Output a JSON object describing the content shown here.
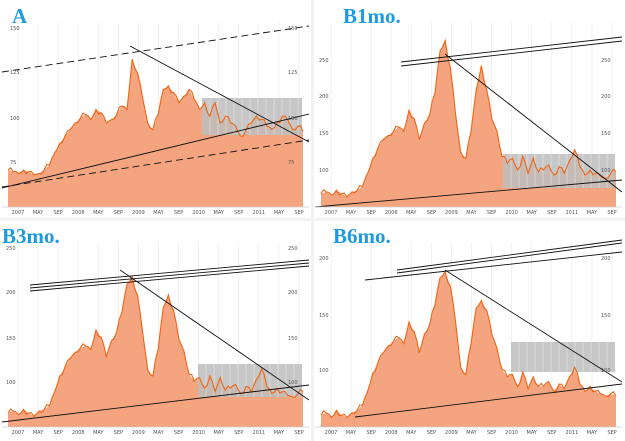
{
  "colors": {
    "area_fill": "#f4a57f",
    "price_line": "#f06414",
    "title": "#1e9be0",
    "range_box": "#bdbdbd",
    "trend_line": "#111111",
    "grid": "#e8e8e8"
  },
  "chart_data": [
    {
      "type": "area",
      "title": "A",
      "xticks": [
        "2007",
        "MAY",
        "SEP",
        "2008",
        "MAY",
        "SEP",
        "2009",
        "MAY",
        "SEP",
        "2010",
        "MAY",
        "SEP",
        "2011",
        "MAY",
        "SEP"
      ],
      "yticks_left": [
        "150",
        "125",
        "100",
        "75"
      ],
      "yticks_right": [
        "150",
        "125",
        "100",
        "75"
      ],
      "ylim": [
        50,
        160
      ],
      "x": [
        0,
        1,
        2,
        3,
        4,
        5,
        6,
        7,
        8,
        9,
        10,
        11,
        12,
        13,
        14,
        15,
        16,
        17,
        18,
        19,
        20,
        21,
        22,
        23,
        24,
        25,
        26,
        27,
        28,
        29,
        30,
        31,
        32,
        33,
        34,
        35,
        36,
        37,
        38,
        39,
        40,
        41,
        42,
        43,
        44,
        45,
        46,
        47,
        48,
        49,
        50,
        51,
        52,
        53,
        54,
        55,
        56,
        57
      ],
      "values": [
        72,
        71,
        70,
        72,
        71,
        69,
        70,
        72,
        75,
        82,
        88,
        92,
        96,
        100,
        103,
        105,
        102,
        108,
        106,
        100,
        102,
        105,
        110,
        108,
        138,
        130,
        115,
        100,
        96,
        105,
        120,
        122,
        118,
        112,
        116,
        120,
        114,
        108,
        112,
        104,
        112,
        100,
        104,
        100,
        98,
        92,
        96,
        100,
        104,
        102,
        98,
        96,
        100,
        104,
        102,
        96,
        98,
        95
      ],
      "annotations": []
    },
    {
      "type": "area",
      "title": "B1mo.",
      "xticks": [
        "2007",
        "MAY",
        "SEP",
        "2008",
        "MAY",
        "SEP",
        "2009",
        "MAY",
        "SEP",
        "2010",
        "MAY",
        "SEP",
        "2011",
        "MAY",
        "SEP"
      ],
      "yticks_left": [
        "250",
        "200",
        "150",
        "100"
      ],
      "yticks_right": [
        "250",
        "200",
        "150",
        "100"
      ],
      "ylim": [
        60,
        280
      ],
      "x": [
        0,
        1,
        2,
        3,
        4,
        5,
        6,
        7,
        8,
        9,
        10,
        11,
        12,
        13,
        14,
        15,
        16,
        17,
        18,
        19,
        20,
        21,
        22,
        23,
        24,
        25,
        26,
        27,
        28,
        29,
        30,
        31,
        32,
        33,
        34,
        35,
        36,
        37,
        38,
        39,
        40,
        41,
        42,
        43,
        44,
        45,
        46,
        47,
        48,
        49,
        50,
        51,
        52,
        53,
        54,
        55,
        56,
        57
      ],
      "values": [
        76,
        78,
        74,
        80,
        76,
        72,
        78,
        80,
        84,
        100,
        118,
        130,
        140,
        145,
        150,
        155,
        150,
        175,
        165,
        140,
        160,
        170,
        195,
        245,
        258,
        225,
        170,
        125,
        118,
        150,
        200,
        228,
        200,
        165,
        150,
        120,
        112,
        118,
        104,
        120,
        100,
        118,
        102,
        104,
        110,
        98,
        108,
        100,
        115,
        128,
        108,
        98,
        104,
        100,
        96,
        94,
        100,
        102
      ],
      "annotations": []
    },
    {
      "type": "area",
      "title": "B3mo.",
      "xticks": [
        "2007",
        "MAY",
        "SEP",
        "2008",
        "MAY",
        "SEP",
        "2009",
        "MAY",
        "SEP",
        "2010",
        "MAY",
        "SEP",
        "2011",
        "MAY",
        "SEP"
      ],
      "yticks_left": [
        "250",
        "200",
        "150",
        "100"
      ],
      "yticks_right": [
        "250",
        "200",
        "150",
        "100"
      ],
      "ylim": [
        60,
        270
      ],
      "x": [
        0,
        1,
        2,
        3,
        4,
        5,
        6,
        7,
        8,
        9,
        10,
        11,
        12,
        13,
        14,
        15,
        16,
        17,
        18,
        19,
        20,
        21,
        22,
        23,
        24,
        25,
        26,
        27,
        28,
        29,
        30,
        31,
        32,
        33,
        34,
        35,
        36,
        37,
        38,
        39,
        40,
        41,
        42,
        43,
        44,
        45,
        46,
        47,
        48,
        49,
        50,
        51,
        52,
        53,
        54,
        55,
        56,
        57
      ],
      "values": [
        76,
        78,
        74,
        80,
        76,
        72,
        78,
        80,
        84,
        100,
        118,
        128,
        138,
        145,
        150,
        152,
        148,
        170,
        162,
        140,
        158,
        168,
        190,
        222,
        230,
        210,
        168,
        125,
        118,
        148,
        196,
        210,
        192,
        160,
        146,
        120,
        112,
        116,
        104,
        118,
        100,
        116,
        102,
        104,
        108,
        98,
        106,
        100,
        114,
        126,
        106,
        98,
        104,
        100,
        96,
        94,
        98,
        100
      ],
      "annotations": []
    },
    {
      "type": "area",
      "title": "B6mo.",
      "xticks": [
        "2007",
        "MAY",
        "SEP",
        "2008",
        "MAY",
        "SEP",
        "2009",
        "MAY",
        "SEP",
        "2010",
        "MAY",
        "SEP",
        "2011",
        "MAY",
        "SEP"
      ],
      "yticks_left": [
        "200",
        "150",
        "100"
      ],
      "yticks_right": [
        "200",
        "150",
        "100"
      ],
      "ylim": [
        70,
        225
      ],
      "x": [
        0,
        1,
        2,
        3,
        4,
        5,
        6,
        7,
        8,
        9,
        10,
        11,
        12,
        13,
        14,
        15,
        16,
        17,
        18,
        19,
        20,
        21,
        22,
        23,
        24,
        25,
        26,
        27,
        28,
        29,
        30,
        31,
        32,
        33,
        34,
        35,
        36,
        37,
        38,
        39,
        40,
        41,
        42,
        43,
        44,
        45,
        46,
        47,
        48,
        49,
        50,
        51,
        52,
        53,
        54,
        55,
        56,
        57
      ],
      "values": [
        80,
        82,
        78,
        84,
        80,
        78,
        82,
        84,
        88,
        100,
        115,
        124,
        132,
        138,
        142,
        145,
        140,
        158,
        150,
        132,
        148,
        156,
        172,
        195,
        200,
        188,
        158,
        120,
        114,
        140,
        170,
        176,
        168,
        148,
        136,
        118,
        112,
        114,
        104,
        116,
        102,
        112,
        104,
        104,
        108,
        100,
        106,
        102,
        112,
        120,
        106,
        100,
        104,
        100,
        98,
        96,
        98,
        96
      ],
      "annotations": []
    }
  ]
}
